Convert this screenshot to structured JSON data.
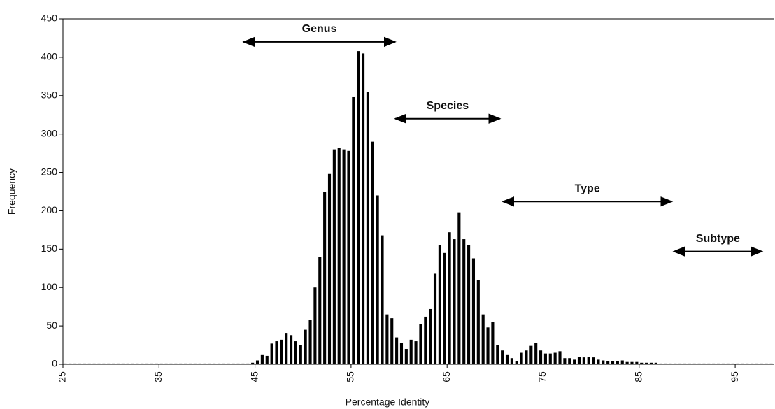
{
  "chart_data": {
    "type": "histogram",
    "xlabel": "Percentage Identity",
    "ylabel": "Frequency",
    "xlim": [
      25,
      99
    ],
    "ylim": [
      0,
      450
    ],
    "xticks": [
      25,
      35,
      45,
      55,
      65,
      75,
      85,
      95
    ],
    "yticks": [
      0,
      50,
      100,
      150,
      200,
      250,
      300,
      350,
      400,
      450
    ],
    "color": "#000000",
    "bins": [
      25,
      25.5,
      26,
      26.5,
      27,
      27.5,
      28,
      28.5,
      29,
      29.5,
      30,
      30.5,
      31,
      31.5,
      32,
      32.5,
      33,
      33.5,
      34,
      34.5,
      35,
      35.5,
      36,
      36.5,
      37,
      37.5,
      38,
      38.5,
      39,
      39.5,
      40,
      40.5,
      41,
      41.5,
      42,
      42.5,
      43,
      43.5,
      44,
      44.5,
      45,
      45.5,
      46,
      46.5,
      47,
      47.5,
      48,
      48.5,
      49,
      49.5,
      50,
      50.5,
      51,
      51.5,
      52,
      52.5,
      53,
      53.5,
      54,
      54.5,
      55,
      55.5,
      56,
      56.5,
      57,
      57.5,
      58,
      58.5,
      59,
      59.5,
      60,
      60.5,
      61,
      61.5,
      62,
      62.5,
      63,
      63.5,
      64,
      64.5,
      65,
      65.5,
      66,
      66.5,
      67,
      67.5,
      68,
      68.5,
      69,
      69.5,
      70,
      70.5,
      71,
      71.5,
      72,
      72.5,
      73,
      73.5,
      74,
      74.5,
      75,
      75.5,
      76,
      76.5,
      77,
      77.5,
      78,
      78.5,
      79,
      79.5,
      80,
      80.5,
      81,
      81.5,
      82,
      82.5,
      83,
      83.5,
      84,
      84.5,
      85,
      85.5,
      86,
      86.5,
      87,
      87.5,
      88,
      88.5,
      89,
      89.5,
      90,
      90.5,
      91,
      91.5,
      92,
      92.5,
      93,
      93.5,
      94,
      94.5,
      95,
      95.5,
      96,
      96.5,
      97,
      97.5,
      98,
      98.5,
      99
    ],
    "values": [
      1,
      1,
      1,
      1,
      1,
      1,
      1,
      1,
      1,
      1,
      1,
      1,
      1,
      1,
      1,
      1,
      1,
      1,
      1,
      1,
      1,
      1,
      1,
      1,
      1,
      1,
      1,
      1,
      1,
      1,
      1,
      1,
      1,
      1,
      1,
      1,
      1,
      1,
      1,
      2,
      5,
      12,
      11,
      27,
      30,
      32,
      40,
      38,
      30,
      25,
      45,
      58,
      100,
      140,
      225,
      248,
      280,
      282,
      280,
      278,
      348,
      408,
      405,
      355,
      290,
      220,
      168,
      65,
      60,
      35,
      28,
      20,
      32,
      30,
      52,
      62,
      72,
      118,
      155,
      145,
      172,
      163,
      198,
      163,
      155,
      138,
      110,
      65,
      48,
      55,
      25,
      18,
      12,
      8,
      4,
      15,
      18,
      24,
      28,
      18,
      14,
      14,
      15,
      17,
      8,
      8,
      6,
      10,
      9,
      10,
      9,
      6,
      5,
      4,
      4,
      4,
      5,
      3,
      3,
      3,
      2,
      2,
      2,
      2,
      1,
      1,
      1,
      1,
      1,
      1,
      1,
      1,
      1,
      1,
      1,
      1,
      1,
      1,
      1,
      1,
      1,
      1,
      1,
      1,
      1,
      1,
      1,
      1
    ],
    "annotations": [
      {
        "text": "Genus",
        "x": [
          43.8,
          59.6
        ],
        "y": 420
      },
      {
        "text": "Species",
        "x": [
          59.6,
          70.5
        ],
        "y": 320
      },
      {
        "text": "Type",
        "x": [
          70.8,
          88.4
        ],
        "y": 212
      },
      {
        "text": "Subtype",
        "x": [
          88.6,
          97.8
        ],
        "y": 147
      }
    ]
  }
}
